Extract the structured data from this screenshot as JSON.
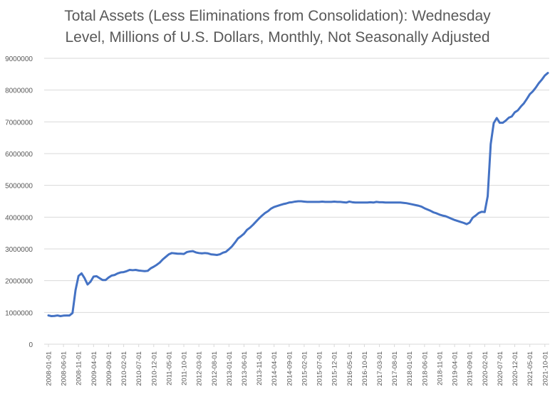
{
  "chart_data": {
    "type": "line",
    "title_line1": "Total Assets (Less Eliminations from Consolidation): Wednesday",
    "title_line2": "Level, Millions of U.S. Dollars, Monthly, Not Seasonally Adjusted",
    "xlabel": "",
    "ylabel": "",
    "ylim": [
      0,
      9000000
    ],
    "yticks": [
      "0",
      "1000000",
      "2000000",
      "3000000",
      "4000000",
      "5000000",
      "6000000",
      "7000000",
      "8000000",
      "9000000"
    ],
    "xticks": [
      "2008-01-01",
      "2008-06-01",
      "2008-11-01",
      "2009-04-01",
      "2009-09-01",
      "2010-02-01",
      "2010-07-01",
      "2010-12-01",
      "2011-05-01",
      "2011-10-01",
      "2012-03-01",
      "2012-08-01",
      "2013-01-01",
      "2013-06-01",
      "2013-11-01",
      "2014-04-01",
      "2014-09-01",
      "2015-02-01",
      "2015-07-01",
      "2015-12-01",
      "2016-05-01",
      "2016-10-01",
      "2017-03-01",
      "2017-08-01",
      "2018-01-01",
      "2018-06-01",
      "2018-11-01",
      "2019-04-01",
      "2019-09-01",
      "2020-02-01",
      "2020-07-01",
      "2020-12-01",
      "2021-05-01",
      "2021-10-01"
    ],
    "grid": true,
    "legend": "none",
    "line_color": "#4472c4",
    "series": [
      {
        "x": [
          "2008-01-01",
          "2008-02-01",
          "2008-03-01",
          "2008-04-01",
          "2008-05-01",
          "2008-06-01",
          "2008-07-01",
          "2008-08-01",
          "2008-09-01",
          "2008-10-01",
          "2008-11-01",
          "2008-12-01",
          "2009-01-01",
          "2009-02-01",
          "2009-03-01",
          "2009-04-01",
          "2009-05-01",
          "2009-06-01",
          "2009-07-01",
          "2009-08-01",
          "2009-09-01",
          "2009-10-01",
          "2009-11-01",
          "2009-12-01",
          "2010-01-01",
          "2010-02-01",
          "2010-03-01",
          "2010-04-01",
          "2010-05-01",
          "2010-06-01",
          "2010-07-01",
          "2010-08-01",
          "2010-09-01",
          "2010-10-01",
          "2010-11-01",
          "2010-12-01",
          "2011-01-01",
          "2011-02-01",
          "2011-03-01",
          "2011-04-01",
          "2011-05-01",
          "2011-06-01",
          "2011-07-01",
          "2011-08-01",
          "2011-09-01",
          "2011-10-01",
          "2011-11-01",
          "2011-12-01",
          "2012-01-01",
          "2012-02-01",
          "2012-03-01",
          "2012-04-01",
          "2012-05-01",
          "2012-06-01",
          "2012-07-01",
          "2012-08-01",
          "2012-09-01",
          "2012-10-01",
          "2012-11-01",
          "2012-12-01",
          "2013-01-01",
          "2013-02-01",
          "2013-03-01",
          "2013-04-01",
          "2013-05-01",
          "2013-06-01",
          "2013-07-01",
          "2013-08-01",
          "2013-09-01",
          "2013-10-01",
          "2013-11-01",
          "2013-12-01",
          "2014-01-01",
          "2014-02-01",
          "2014-03-01",
          "2014-04-01",
          "2014-05-01",
          "2014-06-01",
          "2014-07-01",
          "2014-08-01",
          "2014-09-01",
          "2014-10-01",
          "2014-11-01",
          "2014-12-01",
          "2015-01-01",
          "2015-02-01",
          "2015-03-01",
          "2015-04-01",
          "2015-05-01",
          "2015-06-01",
          "2015-07-01",
          "2015-08-01",
          "2015-09-01",
          "2015-10-01",
          "2015-11-01",
          "2015-12-01",
          "2016-01-01",
          "2016-02-01",
          "2016-03-01",
          "2016-04-01",
          "2016-05-01",
          "2016-06-01",
          "2016-07-01",
          "2016-08-01",
          "2016-09-01",
          "2016-10-01",
          "2016-11-01",
          "2016-12-01",
          "2017-01-01",
          "2017-02-01",
          "2017-03-01",
          "2017-04-01",
          "2017-05-01",
          "2017-06-01",
          "2017-07-01",
          "2017-08-01",
          "2017-09-01",
          "2017-10-01",
          "2017-11-01",
          "2017-12-01",
          "2018-01-01",
          "2018-02-01",
          "2018-03-01",
          "2018-04-01",
          "2018-05-01",
          "2018-06-01",
          "2018-07-01",
          "2018-08-01",
          "2018-09-01",
          "2018-10-01",
          "2018-11-01",
          "2018-12-01",
          "2019-01-01",
          "2019-02-01",
          "2019-03-01",
          "2019-04-01",
          "2019-05-01",
          "2019-06-01",
          "2019-07-01",
          "2019-08-01",
          "2019-09-01",
          "2019-10-01",
          "2019-11-01",
          "2019-12-01",
          "2020-01-01",
          "2020-02-01",
          "2020-03-01",
          "2020-04-01",
          "2020-05-01",
          "2020-06-01",
          "2020-07-01",
          "2020-08-01",
          "2020-09-01",
          "2020-10-01",
          "2020-11-01",
          "2020-12-01",
          "2021-01-01",
          "2021-02-01",
          "2021-03-01",
          "2021-04-01",
          "2021-05-01",
          "2021-06-01",
          "2021-07-01",
          "2021-08-01",
          "2021-09-01",
          "2021-10-01",
          "2021-11-01"
        ],
        "y": [
          905000,
          885000,
          890000,
          905000,
          885000,
          900000,
          905000,
          905000,
          980000,
          1700000,
          2150000,
          2230000,
          2080000,
          1880000,
          1970000,
          2130000,
          2140000,
          2080000,
          2020000,
          2020000,
          2100000,
          2160000,
          2180000,
          2230000,
          2260000,
          2270000,
          2300000,
          2340000,
          2330000,
          2340000,
          2320000,
          2310000,
          2300000,
          2310000,
          2390000,
          2440000,
          2500000,
          2570000,
          2670000,
          2750000,
          2830000,
          2870000,
          2860000,
          2850000,
          2850000,
          2840000,
          2900000,
          2920000,
          2930000,
          2890000,
          2870000,
          2860000,
          2870000,
          2860000,
          2830000,
          2820000,
          2810000,
          2830000,
          2880000,
          2910000,
          2990000,
          3080000,
          3200000,
          3330000,
          3400000,
          3480000,
          3600000,
          3670000,
          3760000,
          3860000,
          3960000,
          4050000,
          4130000,
          4190000,
          4270000,
          4320000,
          4350000,
          4380000,
          4410000,
          4430000,
          4460000,
          4470000,
          4490000,
          4500000,
          4500000,
          4490000,
          4480000,
          4480000,
          4480000,
          4480000,
          4480000,
          4490000,
          4480000,
          4480000,
          4480000,
          4490000,
          4480000,
          4480000,
          4470000,
          4460000,
          4490000,
          4470000,
          4460000,
          4460000,
          4460000,
          4460000,
          4460000,
          4470000,
          4460000,
          4480000,
          4470000,
          4470000,
          4460000,
          4460000,
          4460000,
          4460000,
          4460000,
          4460000,
          4450000,
          4440000,
          4420000,
          4400000,
          4380000,
          4360000,
          4330000,
          4280000,
          4240000,
          4200000,
          4150000,
          4120000,
          4080000,
          4050000,
          4030000,
          3990000,
          3950000,
          3910000,
          3880000,
          3850000,
          3820000,
          3780000,
          3830000,
          3980000,
          4050000,
          4130000,
          4170000,
          4160000,
          4660000,
          6300000,
          6960000,
          7120000,
          6970000,
          6970000,
          7040000,
          7130000,
          7170000,
          7300000,
          7360000,
          7480000,
          7580000,
          7720000,
          7870000,
          7960000,
          8080000,
          8220000,
          8330000,
          8460000,
          8540000
        ]
      }
    ]
  }
}
